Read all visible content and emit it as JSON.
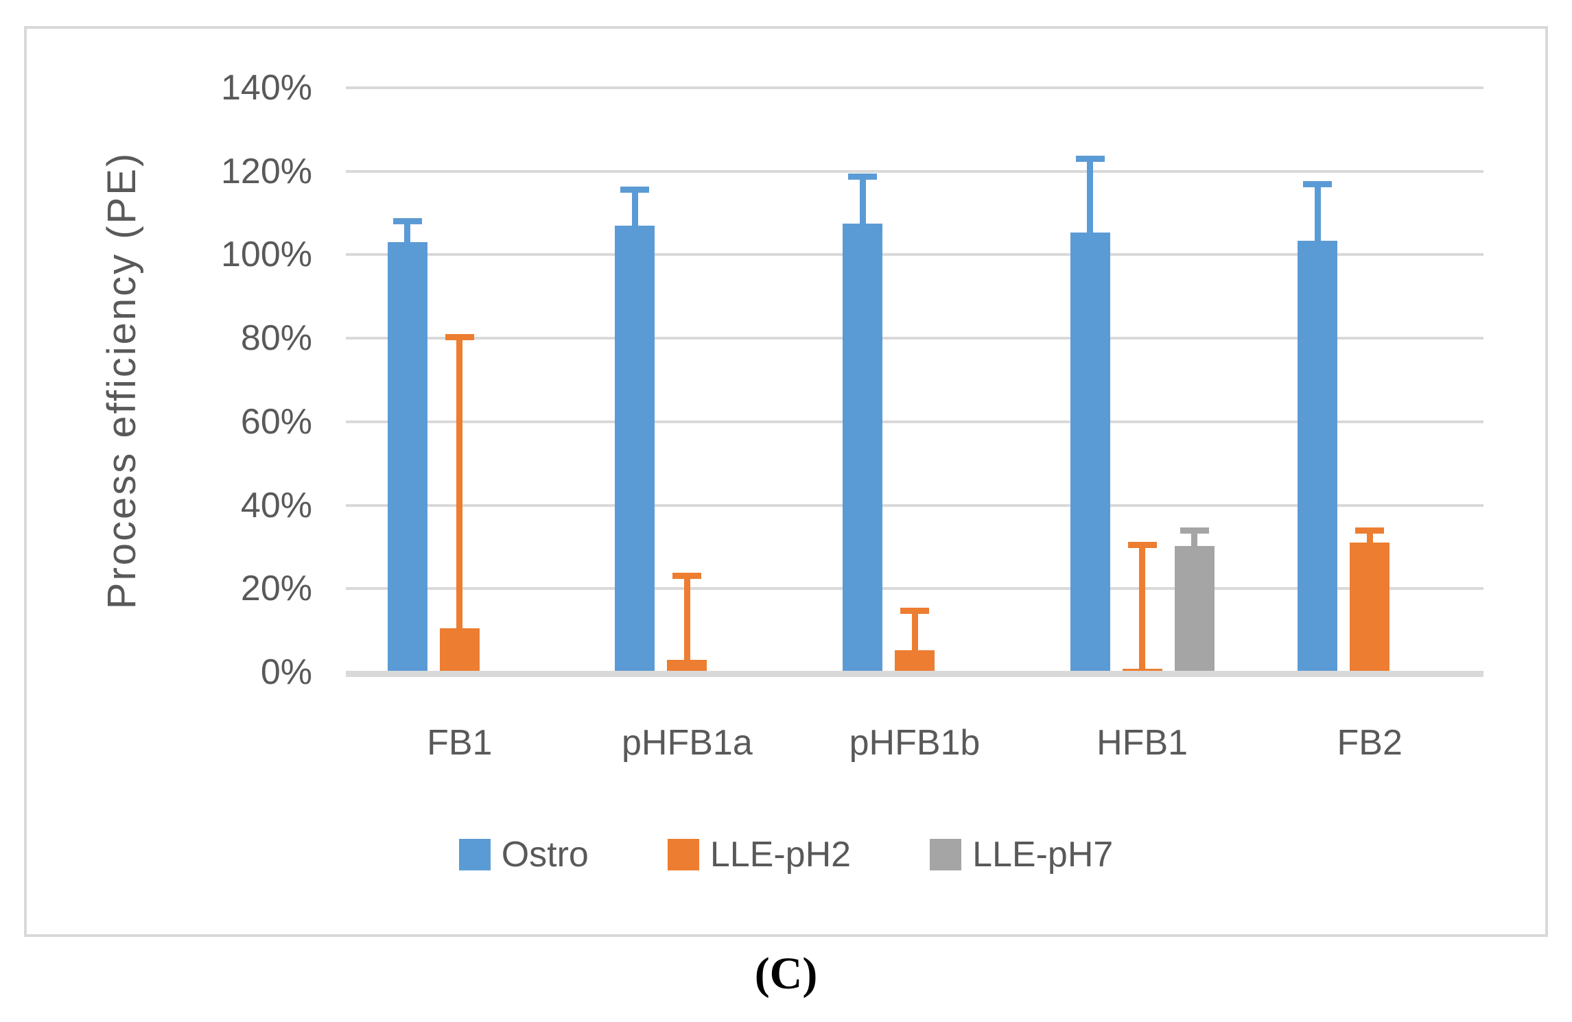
{
  "figure": {
    "caption": "(C)"
  },
  "colors": {
    "gridline": "#d9d9d9",
    "axis_text": "#595959",
    "frame_border": "#d9d9d9",
    "background": "#ffffff"
  },
  "chart_data": {
    "type": "bar",
    "title": "",
    "xlabel": "",
    "ylabel": "Process efficiency (PE)",
    "ylim": [
      0,
      140
    ],
    "grid": true,
    "legend_position": "bottom",
    "yticks": [
      {
        "value": 0,
        "label": "0%"
      },
      {
        "value": 20,
        "label": "20%"
      },
      {
        "value": 40,
        "label": "40%"
      },
      {
        "value": 60,
        "label": "60%"
      },
      {
        "value": 80,
        "label": "80%"
      },
      {
        "value": 100,
        "label": "100%"
      },
      {
        "value": 120,
        "label": "120%"
      },
      {
        "value": 140,
        "label": "140%"
      }
    ],
    "categories": [
      "FB1",
      "pHFB1a",
      "pHFB1b",
      "HFB1",
      "FB2"
    ],
    "series": [
      {
        "name": "Ostro",
        "color": "#5b9bd5",
        "values": [
          103,
          107,
          107.5,
          105.3,
          103.3
        ],
        "error_top": [
          108.7,
          116.3,
          119.5,
          123.8,
          117.7
        ]
      },
      {
        "name": "LLE-pH2",
        "color": "#ed7d31",
        "values": [
          10.5,
          3,
          5.2,
          0.8,
          31
        ],
        "error_top": [
          81,
          23.8,
          15.4,
          31.3,
          34.7
        ]
      },
      {
        "name": "LLE-pH7",
        "color": "#a5a5a5",
        "values": [
          null,
          null,
          null,
          30.3,
          null
        ],
        "error_top": [
          null,
          null,
          null,
          34.6,
          null
        ]
      }
    ]
  }
}
